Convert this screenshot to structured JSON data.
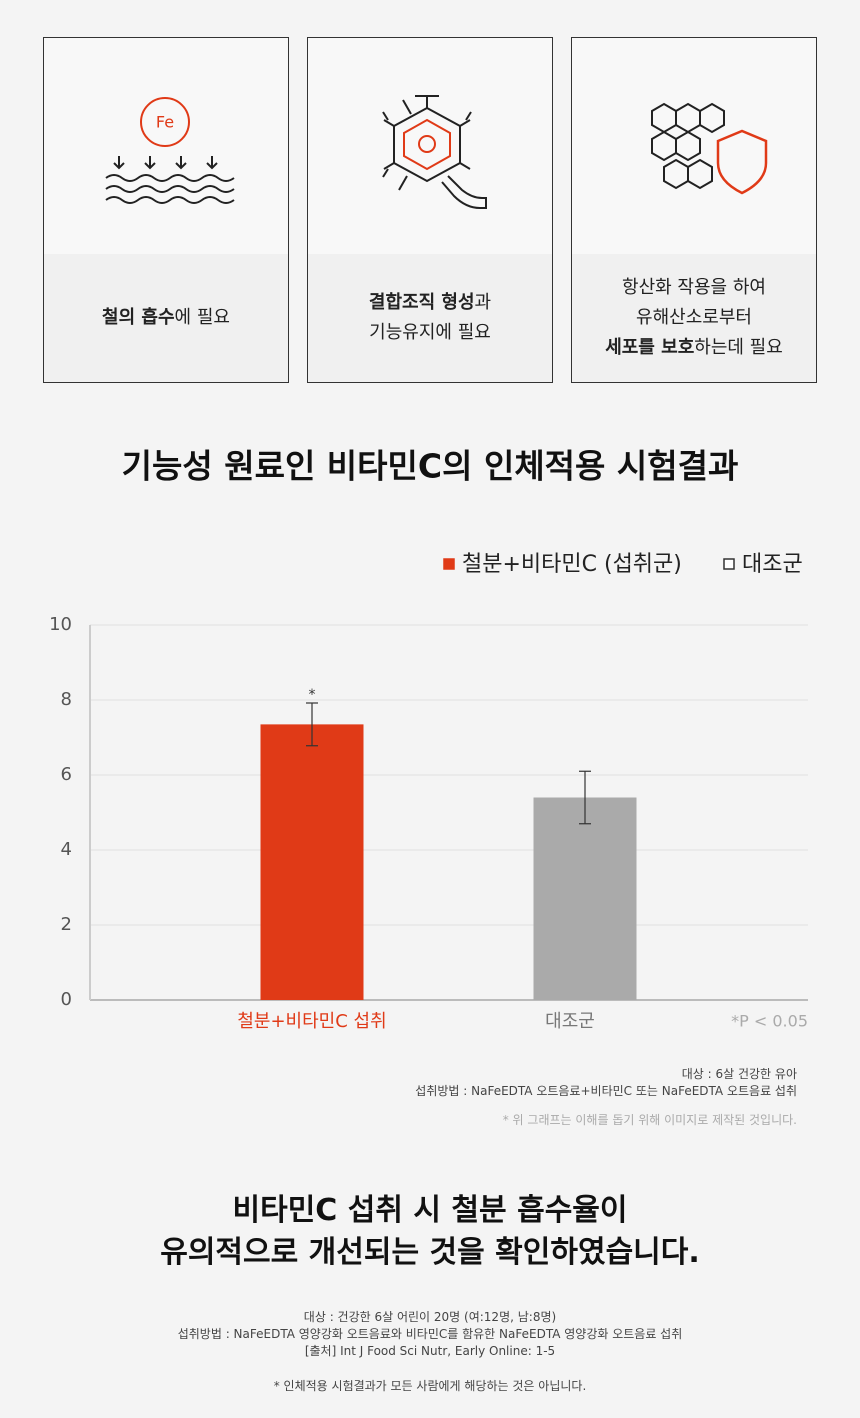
{
  "cards": [
    {
      "icon_label": "Fe",
      "lines": [
        [
          {
            "text": "철의 흡수",
            "bold": true
          },
          {
            "text": "에 필요",
            "bold": false
          }
        ]
      ]
    },
    {
      "lines": [
        [
          {
            "text": "결합조직 형성",
            "bold": true
          },
          {
            "text": "과",
            "bold": false
          }
        ],
        [
          {
            "text": "기능유지에 필요",
            "bold": false
          }
        ]
      ]
    },
    {
      "lines": [
        [
          {
            "text": "항산화 작용을 하여",
            "bold": false
          }
        ],
        [
          {
            "text": "유해산소로부터",
            "bold": false
          }
        ],
        [
          {
            "text": "세포를 보호",
            "bold": true
          },
          {
            "text": "하는데 필요",
            "bold": false
          }
        ]
      ]
    }
  ],
  "chart_data": {
    "type": "bar",
    "title": "기능성 원료인 비타민C의 인체적용 시험결과",
    "legend": [
      {
        "label": "철분+비타민C (섭취군)",
        "color": "#e03a17",
        "filled": true
      },
      {
        "label": "대조군",
        "color": "#333333",
        "filled": false
      }
    ],
    "categories": [
      "철분+비타민C 섭취",
      "대조군"
    ],
    "category_colors": [
      "#e03a17",
      "#777777"
    ],
    "values": [
      7.35,
      5.4
    ],
    "errors": [
      0.57,
      0.7
    ],
    "colors": [
      "#e03a17",
      "#aaaaaa"
    ],
    "annotations": [
      "*",
      null
    ],
    "note": "*P < 0.05",
    "ylim": [
      0,
      10
    ],
    "yticks": [
      0,
      2,
      4,
      6,
      8,
      10
    ],
    "grid": true
  },
  "chart_footnotes": [
    "대상 : 6살 건강한 유아",
    "섭취방법 : NaFeEDTA 오트음료+비타민C 또는 NaFeEDTA 오트음료 섭취",
    "* 위 그래프는 이해를 돕기 위해 이미지로 제작된 것입니다."
  ],
  "headline": [
    "비타민C 섭취 시 철분 흡수율이",
    "유의적으로 개선되는 것을 확인하였습니다."
  ],
  "bottom_notes": [
    "대상 : 건강한 6살 어린이 20명 (여:12명, 남:8명)",
    "섭취방법 : NaFeEDTA 영양강화 오트음료와 비타민C를 함유한 NaFeEDTA 영양강화 오트음료 섭취",
    "[출처] Int J Food Sci Nutr, Early Online: 1-5",
    "* 인체적용 시험결과가 모든 사람에게 해당하는 것은 아닙니다."
  ]
}
